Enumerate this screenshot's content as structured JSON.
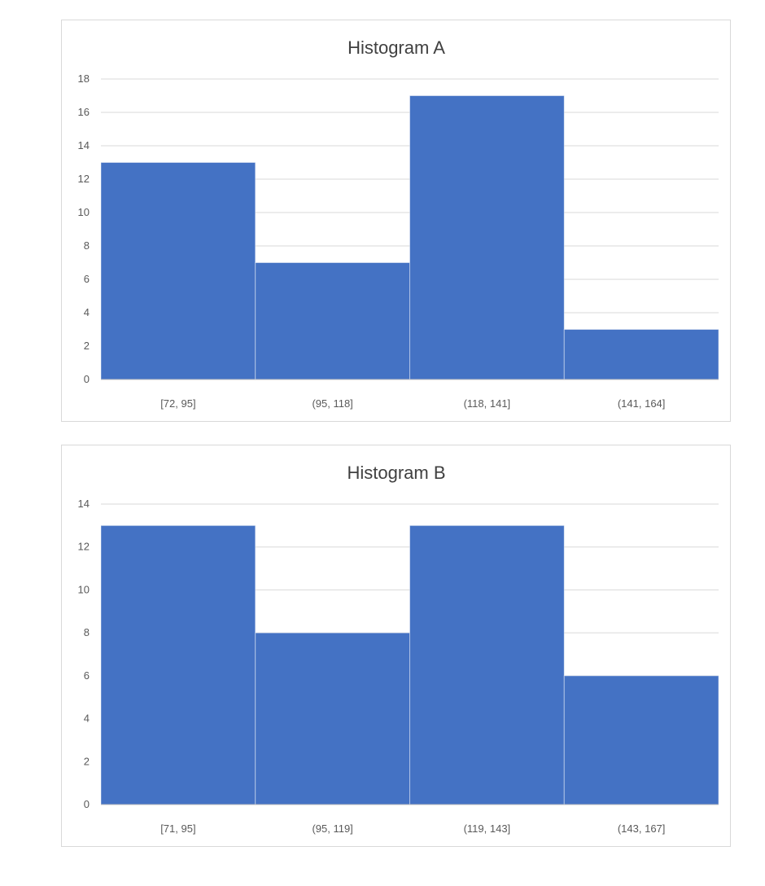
{
  "chart_data": [
    {
      "type": "bar",
      "title": "Histogram A",
      "categories": [
        "[72, 95]",
        "(95, 118]",
        "(118, 141]",
        "(141, 164]"
      ],
      "values": [
        13,
        7,
        17,
        3
      ],
      "xlabel": "",
      "ylabel": "",
      "ylim": [
        0,
        18
      ],
      "yticks": [
        0,
        2,
        4,
        6,
        8,
        10,
        12,
        14,
        16,
        18
      ],
      "grid": true,
      "legend": "none",
      "bar_color": "#4472C4"
    },
    {
      "type": "bar",
      "title": "Histogram B",
      "categories": [
        "[71, 95]",
        "(95, 119]",
        "(119, 143]",
        "(143, 167]"
      ],
      "values": [
        13,
        8,
        13,
        6
      ],
      "xlabel": "",
      "ylabel": "",
      "ylim": [
        0,
        14
      ],
      "yticks": [
        0,
        2,
        4,
        6,
        8,
        10,
        12,
        14
      ],
      "grid": true,
      "legend": "none",
      "bar_color": "#4472C4"
    }
  ]
}
